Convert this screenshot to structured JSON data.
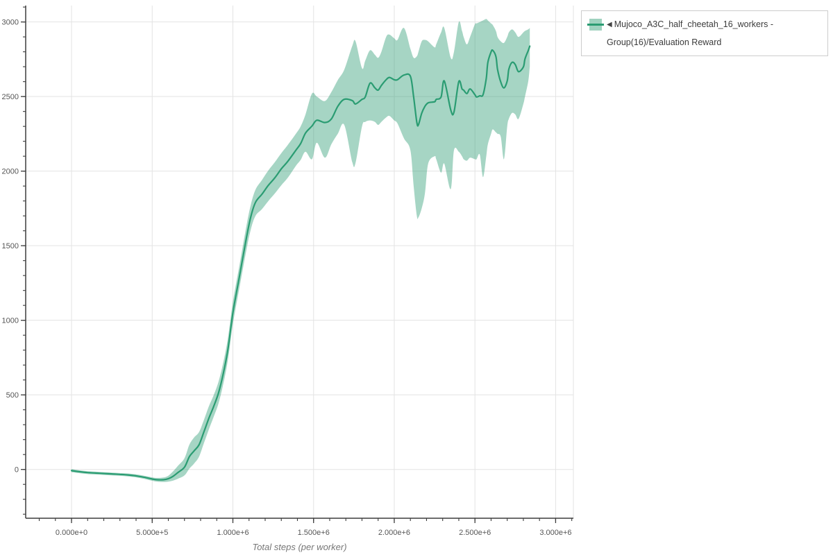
{
  "legend": {
    "label": "Mujoco_A3C_half_cheetah_16_workers - Group(16)/Evaluation Reward",
    "icons": {
      "collapse_triangle": "◀"
    }
  },
  "colors": {
    "line": "#2a9c72",
    "band": "rgba(42,156,114,0.42)",
    "swatch_fill": "rgba(42,156,114,0.45)",
    "grid": "#e3e3e3",
    "axis": "#3c3c3c",
    "tick_label": "#555555",
    "axis_title": "#777777",
    "legend_border": "#cccccc",
    "legend_text": "#3b3b3b",
    "background": "#ffffff"
  },
  "chart_data": {
    "type": "line",
    "title": "",
    "xlabel": "Total steps (per worker)",
    "ylabel": "",
    "grid": true,
    "legend_position": "outside-top-right",
    "xlim": [
      -284000,
      3110000
    ],
    "ylim": [
      -327,
      3110
    ],
    "xticks": {
      "major_values": [
        0,
        500000,
        1000000,
        1500000,
        2000000,
        2500000,
        3000000
      ],
      "labels": [
        "0.000e+0",
        "5.000e+5",
        "1.000e+6",
        "1.500e+6",
        "2.000e+6",
        "2.500e+6",
        "3.000e+6"
      ],
      "minor_start": -200000,
      "minor_step": 100000,
      "minor_end": 3100000
    },
    "yticks": {
      "major_values": [
        0,
        500,
        1000,
        1500,
        2000,
        2500,
        3000
      ],
      "labels": [
        "0",
        "500",
        "1000",
        "1500",
        "2000",
        "2500",
        "3000"
      ],
      "minor_start": -300,
      "minor_step": 100,
      "minor_end": 3100
    },
    "series": [
      {
        "name": "Mujoco_A3C_half_cheetah_16_workers - Group(16)/Evaluation Reward",
        "color": "#2a9c72",
        "band_color": "rgba(42,156,114,0.42)",
        "x": [
          0,
          50000,
          100000,
          150000,
          200000,
          250000,
          300000,
          350000,
          400000,
          450000,
          500000,
          530000,
          570000,
          600000,
          630000,
          660000,
          700000,
          730000,
          760000,
          790000,
          820000,
          850000,
          880000,
          910000,
          940000,
          970000,
          1000000,
          1040000,
          1080000,
          1110000,
          1140000,
          1180000,
          1220000,
          1260000,
          1300000,
          1340000,
          1390000,
          1420000,
          1450000,
          1490000,
          1520000,
          1570000,
          1610000,
          1650000,
          1690000,
          1740000,
          1760000,
          1800000,
          1820000,
          1850000,
          1880000,
          1900000,
          1920000,
          1950000,
          1970000,
          2000000,
          2020000,
          2060000,
          2100000,
          2120000,
          2140000,
          2150000,
          2170000,
          2190000,
          2210000,
          2250000,
          2260000,
          2290000,
          2310000,
          2350000,
          2370000,
          2400000,
          2420000,
          2430000,
          2450000,
          2470000,
          2500000,
          2510000,
          2530000,
          2550000,
          2570000,
          2580000,
          2600000,
          2610000,
          2630000,
          2640000,
          2660000,
          2680000,
          2700000,
          2710000,
          2730000,
          2750000,
          2770000,
          2800000,
          2810000,
          2830000,
          2840000
        ],
        "mean": [
          -8,
          -15,
          -21,
          -24,
          -27,
          -30,
          -33,
          -37,
          -43,
          -52,
          -64,
          -69,
          -69,
          -62,
          -45,
          -20,
          15,
          85,
          125,
          165,
          250,
          340,
          420,
          510,
          640,
          810,
          1050,
          1290,
          1530,
          1690,
          1790,
          1845,
          1905,
          1955,
          2015,
          2065,
          2140,
          2185,
          2255,
          2302,
          2341,
          2326,
          2349,
          2434,
          2481,
          2473,
          2450,
          2481,
          2497,
          2590,
          2558,
          2543,
          2574,
          2613,
          2628,
          2613,
          2613,
          2644,
          2636,
          2497,
          2326,
          2311,
          2388,
          2434,
          2458,
          2465,
          2481,
          2497,
          2605,
          2411,
          2396,
          2600,
          2551,
          2543,
          2520,
          2551,
          2512,
          2497,
          2505,
          2512,
          2621,
          2729,
          2799,
          2810,
          2768,
          2683,
          2597,
          2558,
          2605,
          2683,
          2729,
          2714,
          2667,
          2698,
          2752,
          2807,
          2838
        ],
        "lower": [
          -18,
          -25,
          -31,
          -34,
          -37,
          -40,
          -43,
          -47,
          -53,
          -63,
          -76,
          -82,
          -84,
          -82,
          -75,
          -62,
          -40,
          5,
          40,
          85,
          175,
          265,
          350,
          440,
          570,
          740,
          975,
          1215,
          1450,
          1605,
          1700,
          1745,
          1800,
          1850,
          1905,
          1955,
          2035,
          2075,
          2130,
          2080,
          2190,
          2090,
          2180,
          2250,
          2310,
          2060,
          2055,
          2300,
          2330,
          2340,
          2330,
          2310,
          2330,
          2360,
          2370,
          2340,
          2320,
          2220,
          2140,
          1900,
          1700,
          1690,
          1750,
          1850,
          2050,
          2100,
          2080,
          1990,
          2050,
          1880,
          2140,
          2130,
          2100,
          2080,
          2070,
          2090,
          2080,
          2080,
          2110,
          1960,
          2100,
          2180,
          2250,
          2280,
          2260,
          2250,
          2230,
          2080,
          2300,
          2350,
          2390,
          2380,
          2350,
          2450,
          2500,
          2600,
          2700
        ],
        "upper": [
          2,
          -6,
          -12,
          -15,
          -18,
          -21,
          -24,
          -27,
          -33,
          -42,
          -53,
          -57,
          -54,
          -42,
          -12,
          25,
          75,
          165,
          215,
          250,
          330,
          420,
          495,
          585,
          715,
          885,
          1125,
          1365,
          1610,
          1770,
          1875,
          1940,
          2005,
          2060,
          2120,
          2175,
          2250,
          2300,
          2380,
          2520,
          2500,
          2470,
          2530,
          2610,
          2680,
          2840,
          2870,
          2690,
          2740,
          2810,
          2780,
          2760,
          2800,
          2900,
          2915,
          2890,
          2880,
          2960,
          2820,
          2760,
          2770,
          2800,
          2870,
          2880,
          2870,
          2830,
          2850,
          2930,
          2960,
          2760,
          2800,
          3000,
          2940,
          2900,
          2850,
          2900,
          2985,
          2990,
          3000,
          3010,
          3020,
          3010,
          2990,
          2980,
          2940,
          2900,
          2870,
          2860,
          2900,
          2930,
          2950,
          2930,
          2900,
          2930,
          2940,
          2950,
          2960
        ]
      }
    ]
  }
}
